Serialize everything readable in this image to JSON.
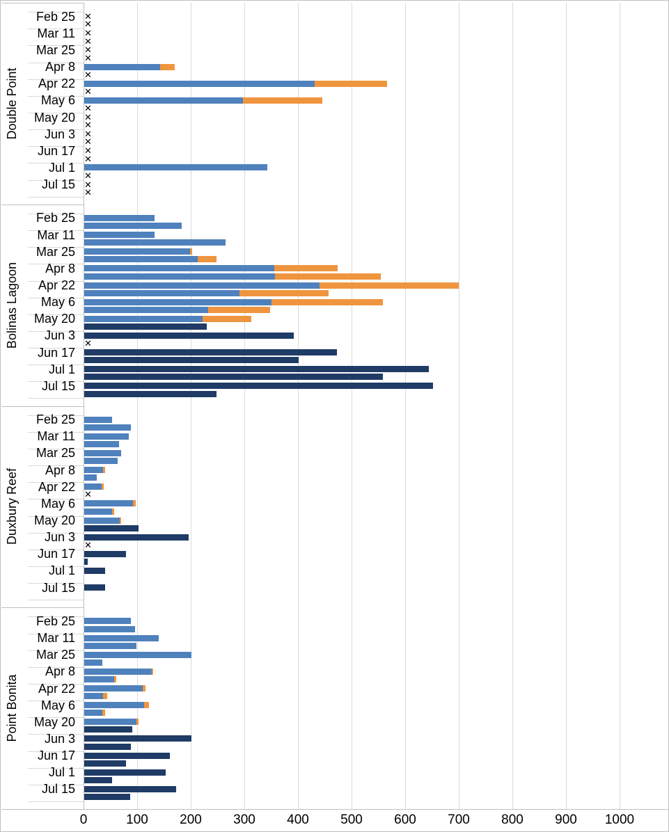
{
  "chart_data": {
    "type": "bar",
    "orientation": "horizontal",
    "stacked": true,
    "title": "",
    "legend": "none",
    "x_axis": {
      "min": 0,
      "max": 1000,
      "tick_step": 100,
      "tick_labels": [
        "0",
        "100",
        "200",
        "300",
        "400",
        "500",
        "600",
        "700",
        "800",
        "900",
        "1000"
      ]
    },
    "colors": {
      "blue": "#4f81bd",
      "orange": "#f0953f",
      "navy": "#1f3b66",
      "gridline": "#d9d9d9",
      "axis": "#bfbfbf",
      "text": "#000000"
    },
    "zero_marker_glyph": "✕",
    "groups": [
      {
        "name": "Double Point",
        "categories": [
          {
            "date": "Feb 25",
            "rows": [
              {
                "marker": "x"
              },
              {
                "marker": "x"
              }
            ]
          },
          {
            "date": "Mar 11",
            "rows": [
              {
                "marker": "x"
              },
              {
                "marker": "x"
              }
            ]
          },
          {
            "date": "Mar 25",
            "rows": [
              {
                "marker": "x"
              },
              {
                "marker": "x"
              }
            ]
          },
          {
            "date": "Apr 8",
            "rows": [
              {
                "blue": 142,
                "orange": 28
              },
              {
                "marker": "x"
              }
            ]
          },
          {
            "date": "Apr 22",
            "rows": [
              {
                "blue": 430,
                "orange": 135
              },
              {
                "marker": "x"
              }
            ]
          },
          {
            "date": "May 6",
            "rows": [
              {
                "blue": 297,
                "orange": 148
              },
              {
                "marker": "x"
              }
            ]
          },
          {
            "date": "May 20",
            "rows": [
              {
                "marker": "x"
              },
              {
                "marker": "x"
              }
            ]
          },
          {
            "date": "Jun 3",
            "rows": [
              {
                "marker": "x"
              },
              {
                "marker": "x"
              }
            ]
          },
          {
            "date": "Jun 17",
            "rows": [
              {
                "marker": "x"
              },
              {
                "marker": "x"
              }
            ]
          },
          {
            "date": "Jul 1",
            "rows": [
              {
                "blue": 342
              },
              {
                "marker": "x"
              }
            ]
          },
          {
            "date": "Jul 15",
            "rows": [
              {
                "marker": "x"
              },
              {
                "marker": "x"
              }
            ]
          }
        ]
      },
      {
        "name": "Bolinas Lagoon",
        "categories": [
          {
            "date": "Feb 25",
            "rows": [
              {
                "blue": 132
              },
              {
                "blue": 183
              }
            ]
          },
          {
            "date": "Mar 11",
            "rows": [
              {
                "blue": 132
              },
              {
                "blue": 264
              }
            ]
          },
          {
            "date": "Mar 25",
            "rows": [
              {
                "blue": 198,
                "orange": 4
              },
              {
                "blue": 212,
                "orange": 35
              }
            ]
          },
          {
            "date": "Apr 8",
            "rows": [
              {
                "blue": 355,
                "orange": 118
              },
              {
                "blue": 357,
                "orange": 197
              }
            ]
          },
          {
            "date": "Apr 22",
            "rows": [
              {
                "blue": 440,
                "orange": 259
              },
              {
                "blue": 290,
                "orange": 167
              }
            ]
          },
          {
            "date": "May 6",
            "rows": [
              {
                "blue": 350,
                "orange": 208
              },
              {
                "blue": 232,
                "orange": 116
              }
            ]
          },
          {
            "date": "May 20",
            "rows": [
              {
                "blue": 221,
                "orange": 91
              },
              {
                "navy": 229
              }
            ]
          },
          {
            "date": "Jun 3",
            "rows": [
              {
                "navy": 391
              },
              {
                "marker": "x"
              }
            ]
          },
          {
            "date": "Jun 17",
            "rows": [
              {
                "navy": 472
              },
              {
                "navy": 400
              }
            ]
          },
          {
            "date": "Jul 1",
            "rows": [
              {
                "navy": 644
              },
              {
                "navy": 558
              }
            ]
          },
          {
            "date": "Jul 15",
            "rows": [
              {
                "navy": 651
              },
              {
                "navy": 247
              }
            ]
          }
        ]
      },
      {
        "name": "Duxbury Reef",
        "categories": [
          {
            "date": "Feb 25",
            "rows": [
              {
                "blue": 52
              },
              {
                "blue": 88
              }
            ]
          },
          {
            "date": "Mar 11",
            "rows": [
              {
                "blue": 84
              },
              {
                "blue": 66
              }
            ]
          },
          {
            "date": "Mar 25",
            "rows": [
              {
                "blue": 69
              },
              {
                "blue": 63
              }
            ]
          },
          {
            "date": "Apr 8",
            "rows": [
              {
                "blue": 36,
                "orange": 3
              },
              {
                "blue": 24
              }
            ]
          },
          {
            "date": "Apr 22",
            "rows": [
              {
                "blue": 33,
                "orange": 4
              },
              {
                "marker": "x"
              }
            ]
          },
          {
            "date": "May 6",
            "rows": [
              {
                "blue": 92,
                "orange": 5
              },
              {
                "blue": 52,
                "orange": 4
              }
            ]
          },
          {
            "date": "May 20",
            "rows": [
              {
                "blue": 67,
                "orange": 3
              },
              {
                "navy": 102
              }
            ]
          },
          {
            "date": "Jun 3",
            "rows": [
              {
                "navy": 195
              },
              {
                "marker": "x"
              }
            ]
          },
          {
            "date": "Jun 17",
            "rows": [
              {
                "navy": 79
              },
              {
                "navy": 7
              }
            ]
          },
          {
            "date": "Jul 1",
            "rows": [
              {
                "navy": 40
              },
              {}
            ]
          },
          {
            "date": "Jul 15",
            "rows": [
              {
                "navy": 40
              },
              {}
            ]
          }
        ]
      },
      {
        "name": "Point Bonita",
        "categories": [
          {
            "date": "Feb 25",
            "rows": [
              {
                "blue": 88
              },
              {
                "blue": 95
              }
            ]
          },
          {
            "date": "Mar 11",
            "rows": [
              {
                "blue": 140
              },
              {
                "blue": 98
              }
            ]
          },
          {
            "date": "Mar 25",
            "rows": [
              {
                "blue": 200
              },
              {
                "blue": 35
              }
            ]
          },
          {
            "date": "Apr 8",
            "rows": [
              {
                "blue": 126,
                "orange": 3
              },
              {
                "blue": 57,
                "orange": 3
              }
            ]
          },
          {
            "date": "Apr 22",
            "rows": [
              {
                "blue": 110,
                "orange": 5
              },
              {
                "blue": 36,
                "orange": 7
              }
            ]
          },
          {
            "date": "May 6",
            "rows": [
              {
                "blue": 112,
                "orange": 10
              },
              {
                "blue": 35,
                "orange": 5
              }
            ]
          },
          {
            "date": "May 20",
            "rows": [
              {
                "blue": 98,
                "orange": 4
              },
              {
                "navy": 90
              }
            ]
          },
          {
            "date": "Jun 3",
            "rows": [
              {
                "navy": 200
              },
              {
                "navy": 88
              }
            ]
          },
          {
            "date": "Jun 17",
            "rows": [
              {
                "navy": 160
              },
              {
                "navy": 78
              }
            ]
          },
          {
            "date": "Jul 1",
            "rows": [
              {
                "navy": 152
              },
              {
                "navy": 53
              }
            ]
          },
          {
            "date": "Jul 15",
            "rows": [
              {
                "navy": 172
              },
              {
                "navy": 87
              }
            ]
          }
        ]
      }
    ]
  }
}
